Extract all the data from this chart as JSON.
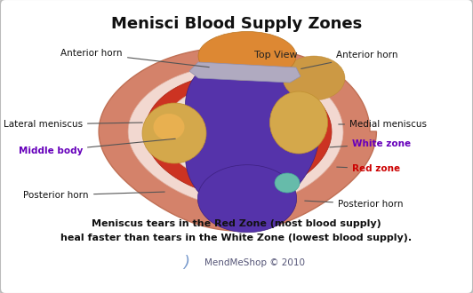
{
  "title": "Menisci Blood Supply Zones",
  "title_fontsize": 13,
  "title_fontweight": "bold",
  "bg_color": "#f2f2f2",
  "border_color": "#bbbbbb",
  "caption_line1": "Meniscus tears in the Red Zone (most blood supply)",
  "caption_line2": "heal faster than tears in the White Zone (lowest blood supply).",
  "caption_fontsize": 8.0,
  "caption_fontweight": "bold",
  "watermark": "MendMeShop © 2010",
  "watermark_fontsize": 7.5,
  "top_view_label": "Top View",
  "figure_width": 5.32,
  "figure_height": 3.3,
  "dpi": 100,
  "outer_color": "#d4826a",
  "outer_edge_color": "#c07055",
  "red_zone_color": "#cc3322",
  "white_zone_color": "#f0e0d8",
  "ligament_color": "#5533aa",
  "ligament_dark": "#3d2080",
  "center_golden": "#d4a84b",
  "anterior_orange": "#dd8833",
  "band_color": "#b0aac0",
  "teal_color": "#66bbaa",
  "ann_color": "#111111",
  "purple_color": "#6600bb",
  "red_label_color": "#cc0000",
  "arrow_color": "#555555"
}
